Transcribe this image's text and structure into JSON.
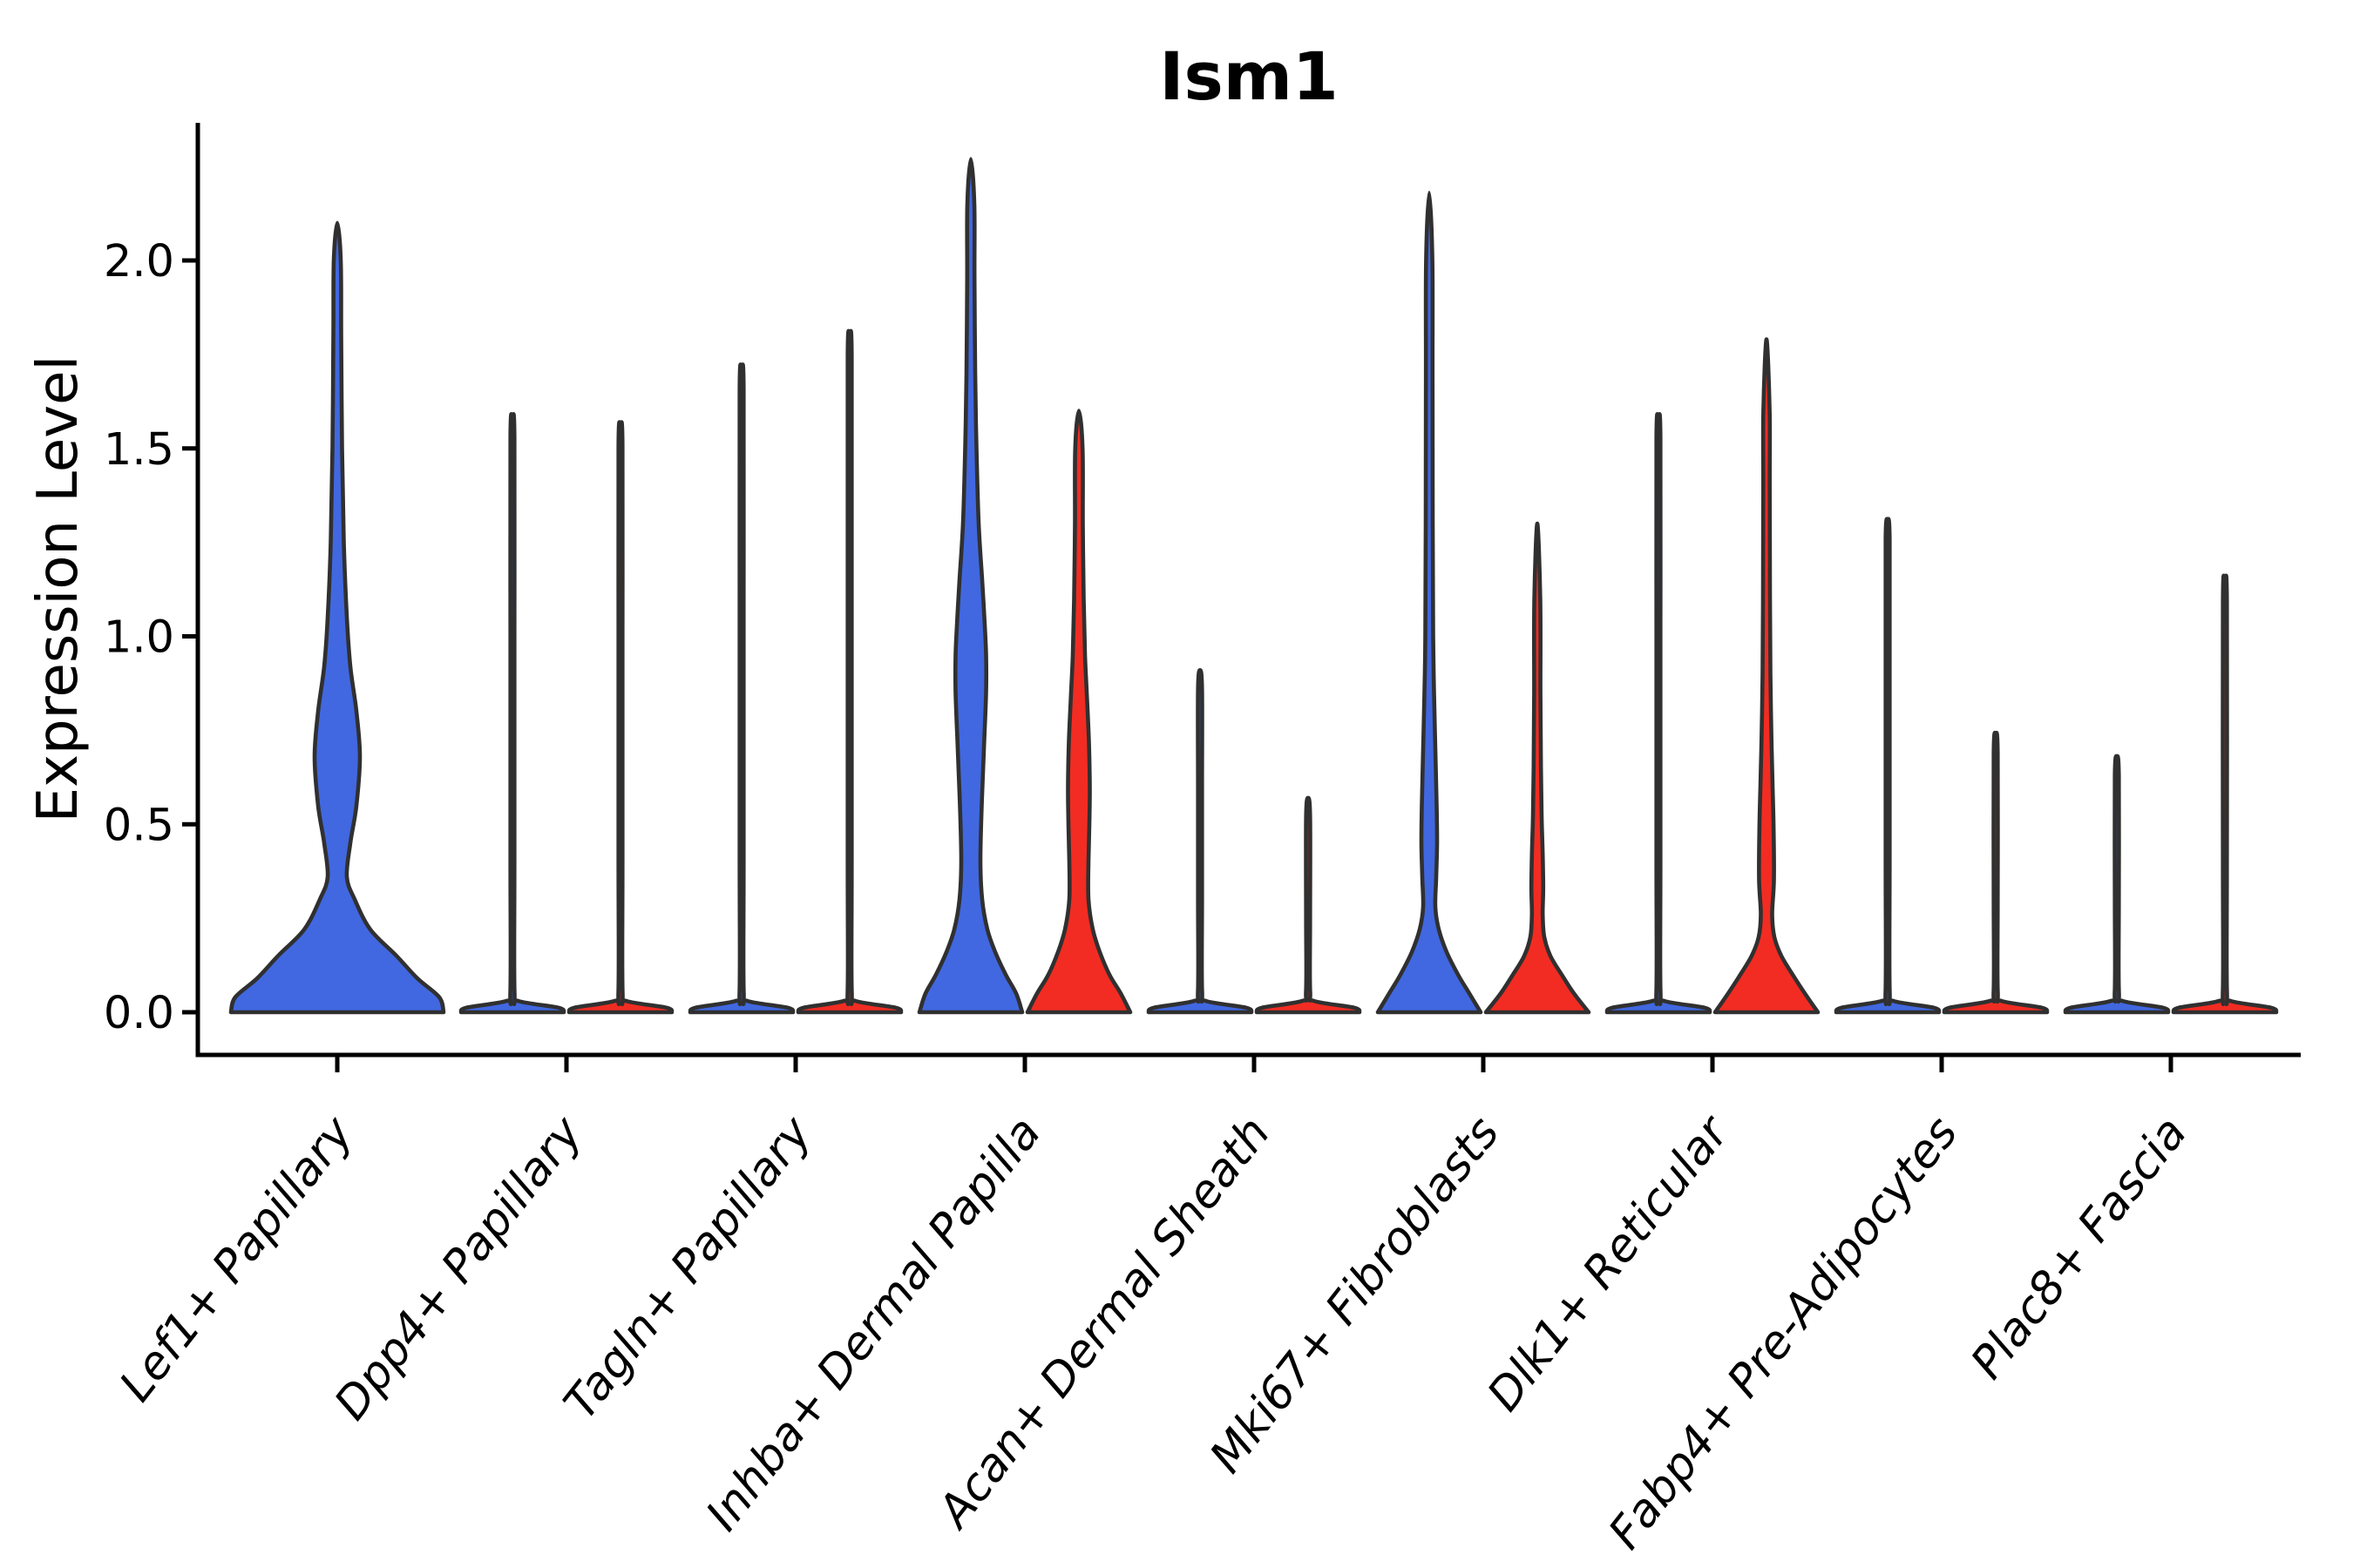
{
  "figure": {
    "title": "Ism1",
    "y_axis_label": "Expression Level"
  },
  "colors": {
    "condition_blue": "#4168e0",
    "condition_red": "#f22c22",
    "violin_outline": "#303030",
    "axis": "#000000",
    "background": "#ffffff"
  },
  "chart_data": {
    "type": "violin",
    "title": "Ism1",
    "xlabel": "",
    "ylabel": "Expression Level",
    "ylim": [
      -0.12,
      2.37
    ],
    "yticks": [
      "0.0",
      "0.5",
      "1.0",
      "1.5",
      "2.0"
    ],
    "ytick_values": [
      0.0,
      0.5,
      1.0,
      1.5,
      2.0
    ],
    "grid": false,
    "legend_position": "none",
    "x_label_rotation_deg": 52,
    "categories": [
      "Lef1+ Papillary",
      "Dpp4+ Papillary",
      "Tagln+ Papillary",
      "Inhba+ Dermal Papilla",
      "Acan+ Dermal Sheath",
      "Mki67+ Fibroblasts",
      "Dlk1+ Reticular",
      "Fabp4+ Pre-Adipocytes",
      "Plac8+ Fascia"
    ],
    "series": [
      {
        "name": "condition-1-blue",
        "color": "#4168e0",
        "max_expression": [
          2.1,
          1.58,
          1.71,
          2.27,
          0.91,
          2.18,
          1.58,
          1.31,
          0.68
        ]
      },
      {
        "name": "condition-2-red",
        "color": "#f22c22",
        "max_expression": [
          null,
          1.56,
          1.8,
          1.6,
          0.57,
          1.3,
          1.79,
          0.74,
          1.14
        ]
      }
    ],
    "violins": [
      {
        "category_index": 0,
        "category": "Lef1+ Papillary",
        "condition": "blue",
        "dodge": "center",
        "tip": 2.1,
        "profile": [
          [
            0,
            122
          ],
          [
            0.04,
            117
          ],
          [
            0.09,
            92
          ],
          [
            0.15,
            68
          ],
          [
            0.22,
            38
          ],
          [
            0.3,
            20
          ],
          [
            0.36,
            11
          ],
          [
            0.45,
            15
          ],
          [
            0.55,
            22
          ],
          [
            0.68,
            26
          ],
          [
            0.8,
            22
          ],
          [
            0.92,
            15
          ],
          [
            1.05,
            11
          ],
          [
            1.25,
            7.5
          ],
          [
            1.5,
            5.5
          ],
          [
            1.8,
            4.5
          ],
          [
            2.0,
            4
          ],
          [
            2.1,
            0
          ]
        ]
      },
      {
        "category_index": 1,
        "category": "Dpp4+ Papillary",
        "condition": "blue",
        "dodge": "left",
        "tip": 1.58,
        "profile": [
          [
            0,
            59
          ],
          [
            0.012,
            53
          ],
          [
            0.03,
            7
          ],
          [
            0.055,
            2.4
          ],
          [
            0.4,
            2.3
          ],
          [
            1.0,
            2.3
          ],
          [
            1.53,
            2.3
          ],
          [
            1.58,
            0
          ]
        ]
      },
      {
        "category_index": 1,
        "category": "Dpp4+ Papillary",
        "condition": "red",
        "dodge": "right",
        "tip": 1.56,
        "profile": [
          [
            0,
            59
          ],
          [
            0.012,
            53
          ],
          [
            0.03,
            7
          ],
          [
            0.055,
            2.4
          ],
          [
            0.4,
            2.3
          ],
          [
            1.0,
            2.3
          ],
          [
            1.51,
            2.3
          ],
          [
            1.56,
            0
          ]
        ]
      },
      {
        "category_index": 2,
        "category": "Tagln+ Papillary",
        "condition": "blue",
        "dodge": "left",
        "tip": 1.71,
        "profile": [
          [
            0,
            59
          ],
          [
            0.012,
            53
          ],
          [
            0.03,
            7
          ],
          [
            0.055,
            2.4
          ],
          [
            0.4,
            2.3
          ],
          [
            1.1,
            2.3
          ],
          [
            1.66,
            2.3
          ],
          [
            1.71,
            0
          ]
        ]
      },
      {
        "category_index": 2,
        "category": "Tagln+ Papillary",
        "condition": "red",
        "dodge": "right",
        "tip": 1.8,
        "profile": [
          [
            0,
            59
          ],
          [
            0.012,
            53
          ],
          [
            0.03,
            7
          ],
          [
            0.055,
            2.4
          ],
          [
            0.4,
            2.3
          ],
          [
            1.2,
            2.3
          ],
          [
            1.75,
            2.3
          ],
          [
            1.8,
            0
          ]
        ]
      },
      {
        "category_index": 3,
        "category": "Inhba+ Dermal Papilla",
        "condition": "blue",
        "dodge": "left",
        "tip": 2.27,
        "profile": [
          [
            0,
            59
          ],
          [
            0.05,
            52
          ],
          [
            0.1,
            40
          ],
          [
            0.16,
            28
          ],
          [
            0.22,
            19
          ],
          [
            0.3,
            13
          ],
          [
            0.4,
            11
          ],
          [
            0.55,
            12.5
          ],
          [
            0.7,
            15
          ],
          [
            0.85,
            17.5
          ],
          [
            0.95,
            17.5
          ],
          [
            1.05,
            15.5
          ],
          [
            1.15,
            13
          ],
          [
            1.3,
            9
          ],
          [
            1.5,
            6.5
          ],
          [
            1.7,
            5
          ],
          [
            1.95,
            4.2
          ],
          [
            2.15,
            4
          ],
          [
            2.27,
            0
          ]
        ]
      },
      {
        "category_index": 3,
        "category": "Inhba+ Dermal Papilla",
        "condition": "red",
        "dodge": "right",
        "tip": 1.6,
        "profile": [
          [
            0,
            59
          ],
          [
            0.05,
            48
          ],
          [
            0.1,
            35
          ],
          [
            0.16,
            24
          ],
          [
            0.22,
            16
          ],
          [
            0.3,
            11
          ],
          [
            0.4,
            11
          ],
          [
            0.5,
            12
          ],
          [
            0.6,
            12.5
          ],
          [
            0.72,
            11.5
          ],
          [
            0.85,
            9
          ],
          [
            0.95,
            7
          ],
          [
            1.1,
            5.5
          ],
          [
            1.3,
            4.5
          ],
          [
            1.5,
            4.2
          ],
          [
            1.6,
            0
          ]
        ]
      },
      {
        "category_index": 4,
        "category": "Acan+ Dermal Sheath",
        "condition": "blue",
        "dodge": "left",
        "tip": 0.91,
        "profile": [
          [
            0,
            59
          ],
          [
            0.012,
            53
          ],
          [
            0.03,
            7
          ],
          [
            0.055,
            2.4
          ],
          [
            0.3,
            2.3
          ],
          [
            0.6,
            2.3
          ],
          [
            0.86,
            2.3
          ],
          [
            0.91,
            0
          ]
        ]
      },
      {
        "category_index": 4,
        "category": "Acan+ Dermal Sheath",
        "condition": "red",
        "dodge": "right",
        "tip": 0.57,
        "profile": [
          [
            0,
            59
          ],
          [
            0.012,
            53
          ],
          [
            0.03,
            7
          ],
          [
            0.055,
            2.4
          ],
          [
            0.25,
            2.3
          ],
          [
            0.52,
            2.3
          ],
          [
            0.57,
            0
          ]
        ]
      },
      {
        "category_index": 5,
        "category": "Mki67+ Fibroblasts",
        "condition": "blue",
        "dodge": "left",
        "tip": 2.18,
        "profile": [
          [
            0,
            59
          ],
          [
            0.05,
            46
          ],
          [
            0.1,
            33
          ],
          [
            0.16,
            20
          ],
          [
            0.22,
            11
          ],
          [
            0.28,
            7
          ],
          [
            0.36,
            8
          ],
          [
            0.45,
            9
          ],
          [
            0.55,
            8.5
          ],
          [
            0.7,
            7
          ],
          [
            0.85,
            5.5
          ],
          [
            1.0,
            4.5
          ],
          [
            1.3,
            4
          ],
          [
            1.7,
            3.8
          ],
          [
            2.0,
            3.6
          ],
          [
            2.18,
            0
          ]
        ]
      },
      {
        "category_index": 5,
        "category": "Mki67+ Fibroblasts",
        "condition": "red",
        "dodge": "right",
        "tip": 1.3,
        "profile": [
          [
            0,
            59
          ],
          [
            0.05,
            42
          ],
          [
            0.1,
            28
          ],
          [
            0.15,
            15
          ],
          [
            0.2,
            8
          ],
          [
            0.26,
            6.2
          ],
          [
            0.33,
            6.8
          ],
          [
            0.42,
            6.2
          ],
          [
            0.52,
            5
          ],
          [
            0.65,
            4.2
          ],
          [
            0.85,
            3.6
          ],
          [
            1.1,
            3.4
          ],
          [
            1.3,
            0
          ]
        ]
      },
      {
        "category_index": 6,
        "category": "Dlk1+ Reticular",
        "condition": "blue",
        "dodge": "left",
        "tip": 1.58,
        "profile": [
          [
            0,
            59
          ],
          [
            0.012,
            53
          ],
          [
            0.03,
            7
          ],
          [
            0.055,
            2.4
          ],
          [
            0.4,
            2.3
          ],
          [
            1.0,
            2.3
          ],
          [
            1.53,
            2.3
          ],
          [
            1.58,
            0
          ]
        ]
      },
      {
        "category_index": 6,
        "category": "Dlk1+ Reticular",
        "condition": "red",
        "dodge": "right",
        "tip": 1.79,
        "profile": [
          [
            0,
            59
          ],
          [
            0.05,
            44
          ],
          [
            0.1,
            30
          ],
          [
            0.15,
            17
          ],
          [
            0.2,
            9
          ],
          [
            0.26,
            6.5
          ],
          [
            0.35,
            8.5
          ],
          [
            0.48,
            8.2
          ],
          [
            0.6,
            7
          ],
          [
            0.75,
            5.5
          ],
          [
            0.9,
            4.5
          ],
          [
            1.1,
            4
          ],
          [
            1.4,
            3.7
          ],
          [
            1.6,
            3.6
          ],
          [
            1.79,
            0
          ]
        ]
      },
      {
        "category_index": 7,
        "category": "Fabp4+ Pre-Adipocytes",
        "condition": "blue",
        "dodge": "left",
        "tip": 1.31,
        "profile": [
          [
            0,
            59
          ],
          [
            0.012,
            53
          ],
          [
            0.03,
            7
          ],
          [
            0.055,
            2.4
          ],
          [
            0.4,
            2.3
          ],
          [
            0.9,
            2.3
          ],
          [
            1.26,
            2.3
          ],
          [
            1.31,
            0
          ]
        ]
      },
      {
        "category_index": 7,
        "category": "Fabp4+ Pre-Adipocytes",
        "condition": "red",
        "dodge": "right",
        "tip": 0.74,
        "profile": [
          [
            0,
            59
          ],
          [
            0.012,
            53
          ],
          [
            0.03,
            7
          ],
          [
            0.055,
            2.4
          ],
          [
            0.3,
            2.3
          ],
          [
            0.69,
            2.3
          ],
          [
            0.74,
            0
          ]
        ]
      },
      {
        "category_index": 8,
        "category": "Plac8+ Fascia",
        "condition": "blue",
        "dodge": "left",
        "tip": 0.68,
        "profile": [
          [
            0,
            59
          ],
          [
            0.012,
            53
          ],
          [
            0.03,
            7
          ],
          [
            0.055,
            2.4
          ],
          [
            0.3,
            2.3
          ],
          [
            0.63,
            2.3
          ],
          [
            0.68,
            0
          ]
        ]
      },
      {
        "category_index": 8,
        "category": "Plac8+ Fascia",
        "condition": "red",
        "dodge": "right",
        "tip": 1.14,
        "profile": [
          [
            0,
            59
          ],
          [
            0.012,
            53
          ],
          [
            0.03,
            7
          ],
          [
            0.055,
            2.4
          ],
          [
            0.4,
            2.3
          ],
          [
            1.09,
            2.3
          ],
          [
            1.14,
            0
          ]
        ]
      }
    ]
  }
}
